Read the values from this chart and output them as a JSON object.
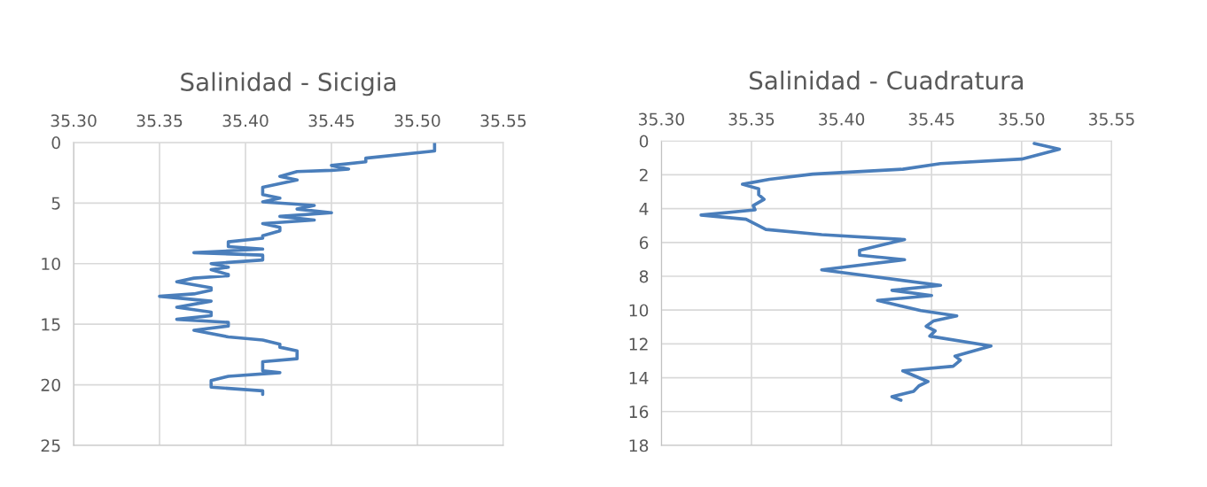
{
  "chart_data": [
    {
      "type": "line",
      "title": "Salinidad - Sicigia",
      "grid": true,
      "marker": "none",
      "line_style": "solid",
      "xlim": [
        35.3,
        35.55
      ],
      "xticks": [
        {
          "value": 35.3,
          "label": "35.30"
        },
        {
          "value": 35.35,
          "label": "35.35"
        },
        {
          "value": 35.4,
          "label": "35.40"
        },
        {
          "value": 35.45,
          "label": "35.45"
        },
        {
          "value": 35.5,
          "label": "35.50"
        },
        {
          "value": 35.55,
          "label": "35.55"
        }
      ],
      "ylim": [
        25,
        0
      ],
      "yticks": [
        0,
        5,
        10,
        15,
        20,
        25
      ],
      "series": [
        {
          "color": "#4a7ebb",
          "x": [
            35.51,
            35.51,
            35.47,
            35.47,
            35.45,
            35.46,
            35.45,
            35.43,
            35.42,
            35.43,
            35.41,
            35.41,
            35.42,
            35.41,
            35.44,
            35.43,
            35.45,
            35.42,
            35.44,
            35.41,
            35.42,
            35.42,
            35.41,
            35.41,
            35.39,
            35.39,
            35.41,
            35.37,
            35.41,
            35.41,
            35.38,
            35.39,
            35.38,
            35.39,
            35.39,
            35.37,
            35.36,
            35.38,
            35.38,
            35.37,
            35.35,
            35.38,
            35.36,
            35.38,
            35.38,
            35.36,
            35.39,
            35.39,
            35.37,
            35.39,
            35.41,
            35.42,
            35.42,
            35.43,
            35.43,
            35.41,
            35.41,
            35.42,
            35.39,
            35.38,
            35.38,
            35.41,
            35.41
          ],
          "values": [
            0,
            0.7,
            1.3,
            1.6,
            1.9,
            2.2,
            2.3,
            2.4,
            2.8,
            3.1,
            3.7,
            4.3,
            4.6,
            4.9,
            5.2,
            5.5,
            5.8,
            6.1,
            6.4,
            6.7,
            7.0,
            7.3,
            7.7,
            7.9,
            8.2,
            8.6,
            8.8,
            9.1,
            9.3,
            9.7,
            10.0,
            10.3,
            10.5,
            10.9,
            11.0,
            11.2,
            11.5,
            12.0,
            12.2,
            12.5,
            12.7,
            13.1,
            13.6,
            14.0,
            14.3,
            14.6,
            14.85,
            15.15,
            15.5,
            16.05,
            16.3,
            16.65,
            16.9,
            17.2,
            17.85,
            18.1,
            18.85,
            19.0,
            19.3,
            19.65,
            20.2,
            20.5,
            20.8
          ]
        }
      ]
    },
    {
      "type": "line",
      "title": "Salinidad - Cuadratura",
      "grid": true,
      "marker": "none",
      "line_style": "solid",
      "xlim": [
        35.3,
        35.55
      ],
      "xticks": [
        {
          "value": 35.3,
          "label": "35.30"
        },
        {
          "value": 35.35,
          "label": "35.35"
        },
        {
          "value": 35.4,
          "label": "35.40"
        },
        {
          "value": 35.45,
          "label": "35.45"
        },
        {
          "value": 35.5,
          "label": "35.50"
        },
        {
          "value": 35.55,
          "label": "35.55"
        }
      ],
      "ylim": [
        18,
        0
      ],
      "yticks": [
        0,
        2,
        4,
        6,
        8,
        10,
        12,
        14,
        16,
        18
      ],
      "series": [
        {
          "color": "#4a7ebb",
          "x": [
            35.507,
            35.521,
            35.5,
            35.455,
            35.434,
            35.384,
            35.36,
            35.345,
            35.354,
            35.354,
            35.357,
            35.351,
            35.352,
            35.322,
            35.347,
            35.358,
            35.389,
            35.435,
            35.41,
            35.41,
            35.435,
            35.389,
            35.455,
            35.428,
            35.45,
            35.42,
            35.444,
            35.464,
            35.451,
            35.447,
            35.452,
            35.449,
            35.483,
            35.463,
            35.466,
            35.462,
            35.434,
            35.448,
            35.443,
            35.44,
            35.428,
            35.433
          ],
          "values": [
            0.15,
            0.48,
            1.07,
            1.34,
            1.67,
            1.96,
            2.27,
            2.56,
            2.83,
            3.18,
            3.45,
            3.82,
            4.07,
            4.38,
            4.63,
            5.23,
            5.54,
            5.83,
            6.47,
            6.76,
            7.02,
            7.62,
            8.54,
            8.83,
            9.14,
            9.43,
            10.03,
            10.34,
            10.65,
            10.96,
            11.23,
            11.54,
            12.12,
            12.72,
            12.97,
            13.32,
            13.59,
            14.23,
            14.48,
            14.81,
            15.12,
            15.33
          ]
        }
      ]
    }
  ]
}
